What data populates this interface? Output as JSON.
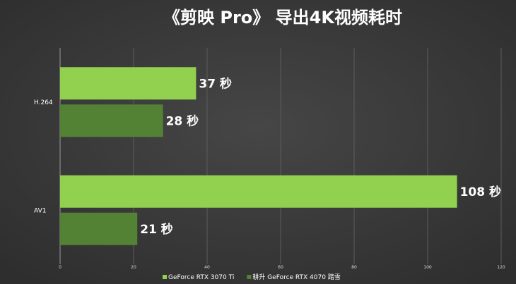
{
  "chart_data": {
    "type": "bar",
    "orientation": "horizontal",
    "title": "《剪映 Pro》 导出4K视频耗时",
    "categories": [
      "H.264",
      "AV1"
    ],
    "series": [
      {
        "name": "GeForce RTX 3070 Ti",
        "color": "#92d050",
        "values": [
          37,
          108
        ],
        "labels": [
          "37 秒",
          "108 秒"
        ]
      },
      {
        "name": "耕升 GeForce RTX 4070 踏雪",
        "color": "#548235",
        "values": [
          28,
          21
        ],
        "labels": [
          "28 秒",
          "21 秒"
        ]
      }
    ],
    "xlim": [
      0,
      120
    ],
    "xticks": [
      "0",
      "20",
      "40",
      "60",
      "80",
      "100",
      "120"
    ],
    "grid": true,
    "legend": "bottom"
  }
}
